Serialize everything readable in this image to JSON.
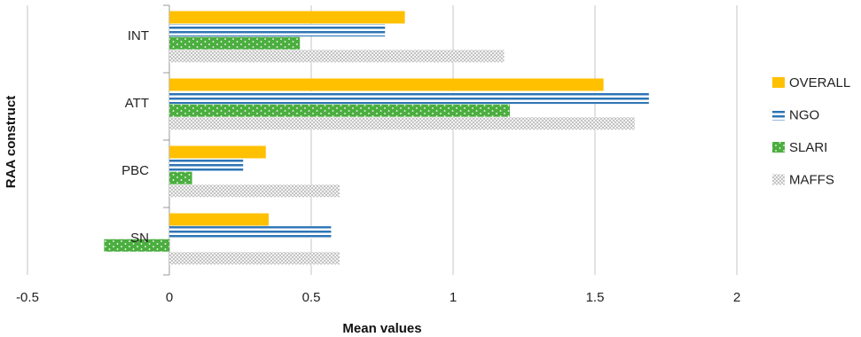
{
  "chart_data": {
    "type": "bar",
    "orientation": "horizontal",
    "categories": [
      "INT",
      "ATT",
      "PBC",
      "SN"
    ],
    "series": [
      {
        "name": "OVERALL",
        "values": [
          0.83,
          1.53,
          0.34,
          0.35
        ],
        "color": "#FFC000",
        "pattern": "solid"
      },
      {
        "name": "NGO",
        "values": [
          0.76,
          1.69,
          0.26,
          0.57
        ],
        "color": "#2E75B6",
        "pattern": "horizontal-stripes"
      },
      {
        "name": "SLARI",
        "values": [
          0.46,
          1.2,
          0.08,
          -0.23
        ],
        "color": "#4BAE3F",
        "pattern": "dotted"
      },
      {
        "name": "MAFFS",
        "values": [
          1.18,
          1.64,
          0.6,
          0.6
        ],
        "color": "#C8C8C8",
        "pattern": "crosshatch"
      }
    ],
    "xlabel": "Mean values",
    "ylabel": "RAA construct",
    "xlim": [
      -0.5,
      2
    ],
    "xticks": [
      -0.5,
      0,
      0.5,
      1,
      1.5,
      2
    ],
    "xtick_labels": [
      "-0.5",
      "0",
      "0.5",
      "1",
      "1.5",
      "2"
    ],
    "grid": "vertical",
    "legend_position": "right"
  }
}
